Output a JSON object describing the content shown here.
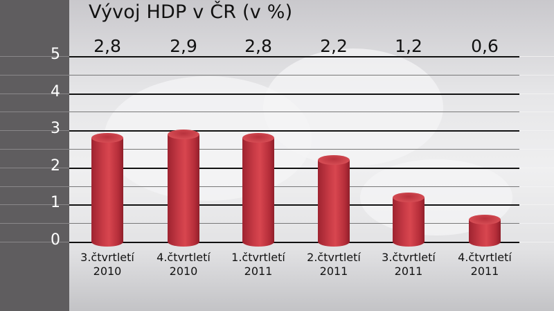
{
  "chart_data": {
    "type": "bar",
    "title": "Vývoj HDP v ČR (v %)",
    "categories": [
      "3.čtvrtletí 2010",
      "4.čtvrtletí 2010",
      "1.čtvrtletí 2011",
      "2.čtvrtletí 2011",
      "3.čtvrtletí 2011",
      "4.čtvrtletí 2011"
    ],
    "category_lines": [
      [
        "3.čtvrtletí",
        "2010"
      ],
      [
        "4.čtvrtletí",
        "2010"
      ],
      [
        "1.čtvrtletí",
        "2011"
      ],
      [
        "2.čtvrtletí",
        "2011"
      ],
      [
        "3.čtvrtletí",
        "2011"
      ],
      [
        "4.čtvrtletí",
        "2011"
      ]
    ],
    "values": [
      2.8,
      2.9,
      2.8,
      2.2,
      1.2,
      0.6
    ],
    "value_labels": [
      "2,8",
      "2,9",
      "2,8",
      "2,2",
      "1,2",
      "0,6"
    ],
    "xlabel": "",
    "ylabel": "",
    "ylim": [
      0,
      5
    ],
    "yticks": [
      "0",
      "1",
      "2",
      "3",
      "4",
      "5"
    ],
    "grid": true,
    "legend": "none",
    "bar_color": "#c73a45"
  }
}
